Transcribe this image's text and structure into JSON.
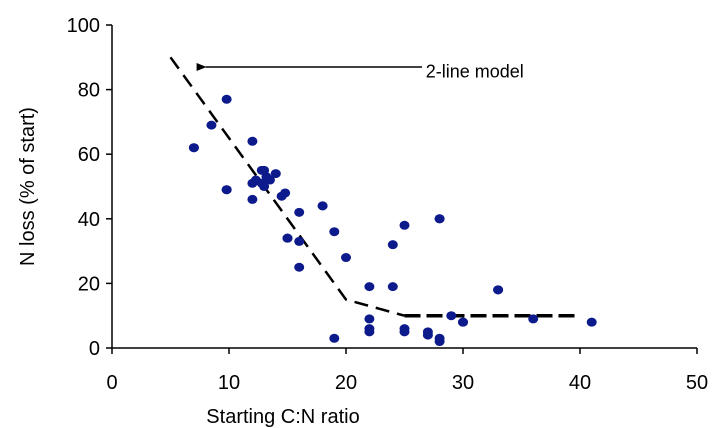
{
  "chart_data": {
    "type": "scatter",
    "title": "",
    "xlabel": "Starting C:N ratio",
    "ylabel": "N loss (% of start)",
    "xlim": [
      0,
      50
    ],
    "ylim": [
      0,
      100
    ],
    "xticks": [
      0,
      10,
      20,
      30,
      40,
      50
    ],
    "yticks": [
      0,
      20,
      40,
      60,
      80,
      100
    ],
    "grid": false,
    "legend": "none",
    "colors": {
      "points": "#0d1a8c",
      "model": "#000000",
      "axis": "#000000"
    },
    "points": [
      [
        7,
        62
      ],
      [
        7,
        62
      ],
      [
        8.5,
        69
      ],
      [
        9.8,
        77
      ],
      [
        9.8,
        49
      ],
      [
        9.8,
        49
      ],
      [
        12,
        64
      ],
      [
        12,
        51
      ],
      [
        12,
        46
      ],
      [
        12.3,
        52
      ],
      [
        12.8,
        55
      ],
      [
        12.8,
        51
      ],
      [
        13,
        55
      ],
      [
        13,
        50
      ],
      [
        13.2,
        53
      ],
      [
        13.5,
        52
      ],
      [
        14,
        54
      ],
      [
        14.5,
        47
      ],
      [
        14.8,
        48
      ],
      [
        15,
        34
      ],
      [
        15,
        34
      ],
      [
        16,
        42
      ],
      [
        16,
        33
      ],
      [
        16,
        25
      ],
      [
        18,
        44
      ],
      [
        18,
        44
      ],
      [
        19,
        36
      ],
      [
        19,
        3
      ],
      [
        20,
        28
      ],
      [
        22,
        19
      ],
      [
        22,
        9
      ],
      [
        22,
        6
      ],
      [
        22,
        5
      ],
      [
        24,
        32
      ],
      [
        24,
        19
      ],
      [
        25,
        38
      ],
      [
        25,
        6
      ],
      [
        25,
        5
      ],
      [
        27,
        5
      ],
      [
        27,
        4
      ],
      [
        28,
        40
      ],
      [
        28,
        40
      ],
      [
        28,
        3
      ],
      [
        28,
        2
      ],
      [
        29,
        10
      ],
      [
        30,
        8
      ],
      [
        30,
        8
      ],
      [
        33,
        18
      ],
      [
        33,
        18
      ],
      [
        36,
        9
      ],
      [
        41,
        8
      ]
    ],
    "model_segments": [
      {
        "name": "segment-1",
        "points": [
          [
            5,
            90
          ],
          [
            20,
            15
          ],
          [
            25,
            10
          ]
        ],
        "style": "dashed"
      },
      {
        "name": "segment-2",
        "points": [
          [
            25,
            10
          ],
          [
            40,
            10
          ]
        ],
        "style": "dashed-bold"
      }
    ],
    "annotation": {
      "text": "2-line model",
      "text_at": [
        27.5,
        85
      ],
      "arrow_from": [
        26.5,
        87
      ],
      "arrow_to": [
        8,
        87
      ]
    }
  }
}
